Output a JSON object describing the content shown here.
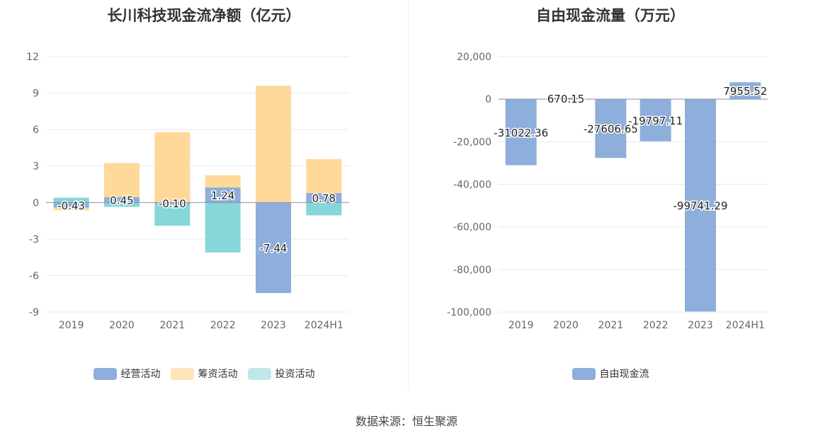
{
  "chart_data": [
    {
      "type": "bar",
      "stacked": true,
      "title": "长川科技现金流净额（亿元）",
      "categories": [
        "2019",
        "2020",
        "2021",
        "2022",
        "2023",
        "2024H1"
      ],
      "ylim": [
        -9,
        12
      ],
      "yticks": [
        "12",
        "9",
        "6",
        "3",
        "0",
        "-3",
        "-6",
        "-9"
      ],
      "ytick_values": [
        12,
        9,
        6,
        3,
        0,
        -3,
        -6,
        -9
      ],
      "grid": true,
      "legend_position": "bottom",
      "series": [
        {
          "name": "经营活动",
          "color": "#8eaedb",
          "values": [
            -0.43,
            0.45,
            -0.1,
            1.24,
            -7.44,
            0.78
          ],
          "labeled": true
        },
        {
          "name": "筹资活动",
          "color": "#ffd99a",
          "values": [
            -0.2,
            2.8,
            5.8,
            1.0,
            9.6,
            2.8
          ],
          "labeled": false
        },
        {
          "name": "投资活动",
          "color": "#86d6da",
          "values": [
            0.4,
            -0.35,
            -1.8,
            -4.1,
            0,
            -1.05
          ],
          "labeled": false
        }
      ],
      "data_labels": [
        "-0.43",
        "0.45",
        "-0.10",
        "1.24",
        "-7.44",
        "0.78"
      ]
    },
    {
      "type": "bar",
      "title": "自由现金流量（万元）",
      "categories": [
        "2019",
        "2020",
        "2021",
        "2022",
        "2023",
        "2024H1"
      ],
      "ylim": [
        -100000,
        20000
      ],
      "yticks": [
        "20,000",
        "0",
        "-20,000",
        "-40,000",
        "-60,000",
        "-80,000",
        "-100,000"
      ],
      "ytick_values": [
        20000,
        0,
        -20000,
        -40000,
        -60000,
        -80000,
        -100000
      ],
      "grid": true,
      "legend_position": "bottom",
      "series": [
        {
          "name": "自由现金流",
          "color": "#8eaedb",
          "values": [
            -31022.36,
            670.15,
            -27606.65,
            -19797.11,
            -99741.29,
            7955.52
          ]
        }
      ],
      "data_labels": [
        "-31022.36",
        "670.15",
        "-27606.65",
        "-19797.11",
        "-99741.29",
        "7955.52"
      ]
    }
  ],
  "legend_left": [
    {
      "label": "经营活动",
      "color": "#8eaedb"
    },
    {
      "label": "筹资活动",
      "color": "#ffe4b8"
    },
    {
      "label": "投资活动",
      "color": "#c0e8ea"
    }
  ],
  "legend_right": [
    {
      "label": "自由现金流",
      "color": "#8eaedb"
    }
  ],
  "source": "数据来源：恒生聚源"
}
